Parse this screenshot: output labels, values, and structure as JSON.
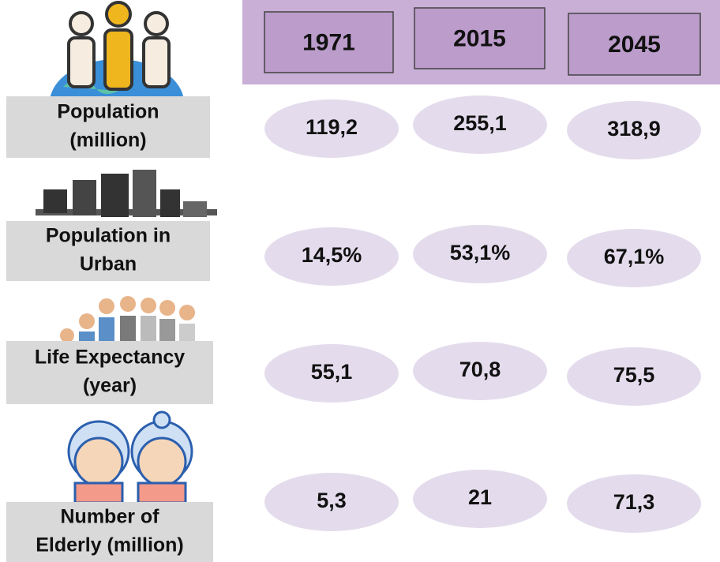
{
  "header": {
    "years": [
      "1971",
      "2015",
      "2045"
    ]
  },
  "rows": [
    {
      "label": [
        "Population",
        "(million)"
      ],
      "values": [
        "119,2",
        "255,1",
        "318,9"
      ]
    },
    {
      "label": [
        "Population in",
        "Urban"
      ],
      "values": [
        "14,5%",
        "53,1%",
        "67,1%"
      ]
    },
    {
      "label": [
        "Life Expectancy",
        "(year)"
      ],
      "values": [
        "55,1",
        "70,8",
        "75,5"
      ]
    },
    {
      "label": [
        "Number of",
        "Elderly (million)"
      ],
      "values": [
        "5,3",
        "21",
        "71,3"
      ]
    }
  ]
}
